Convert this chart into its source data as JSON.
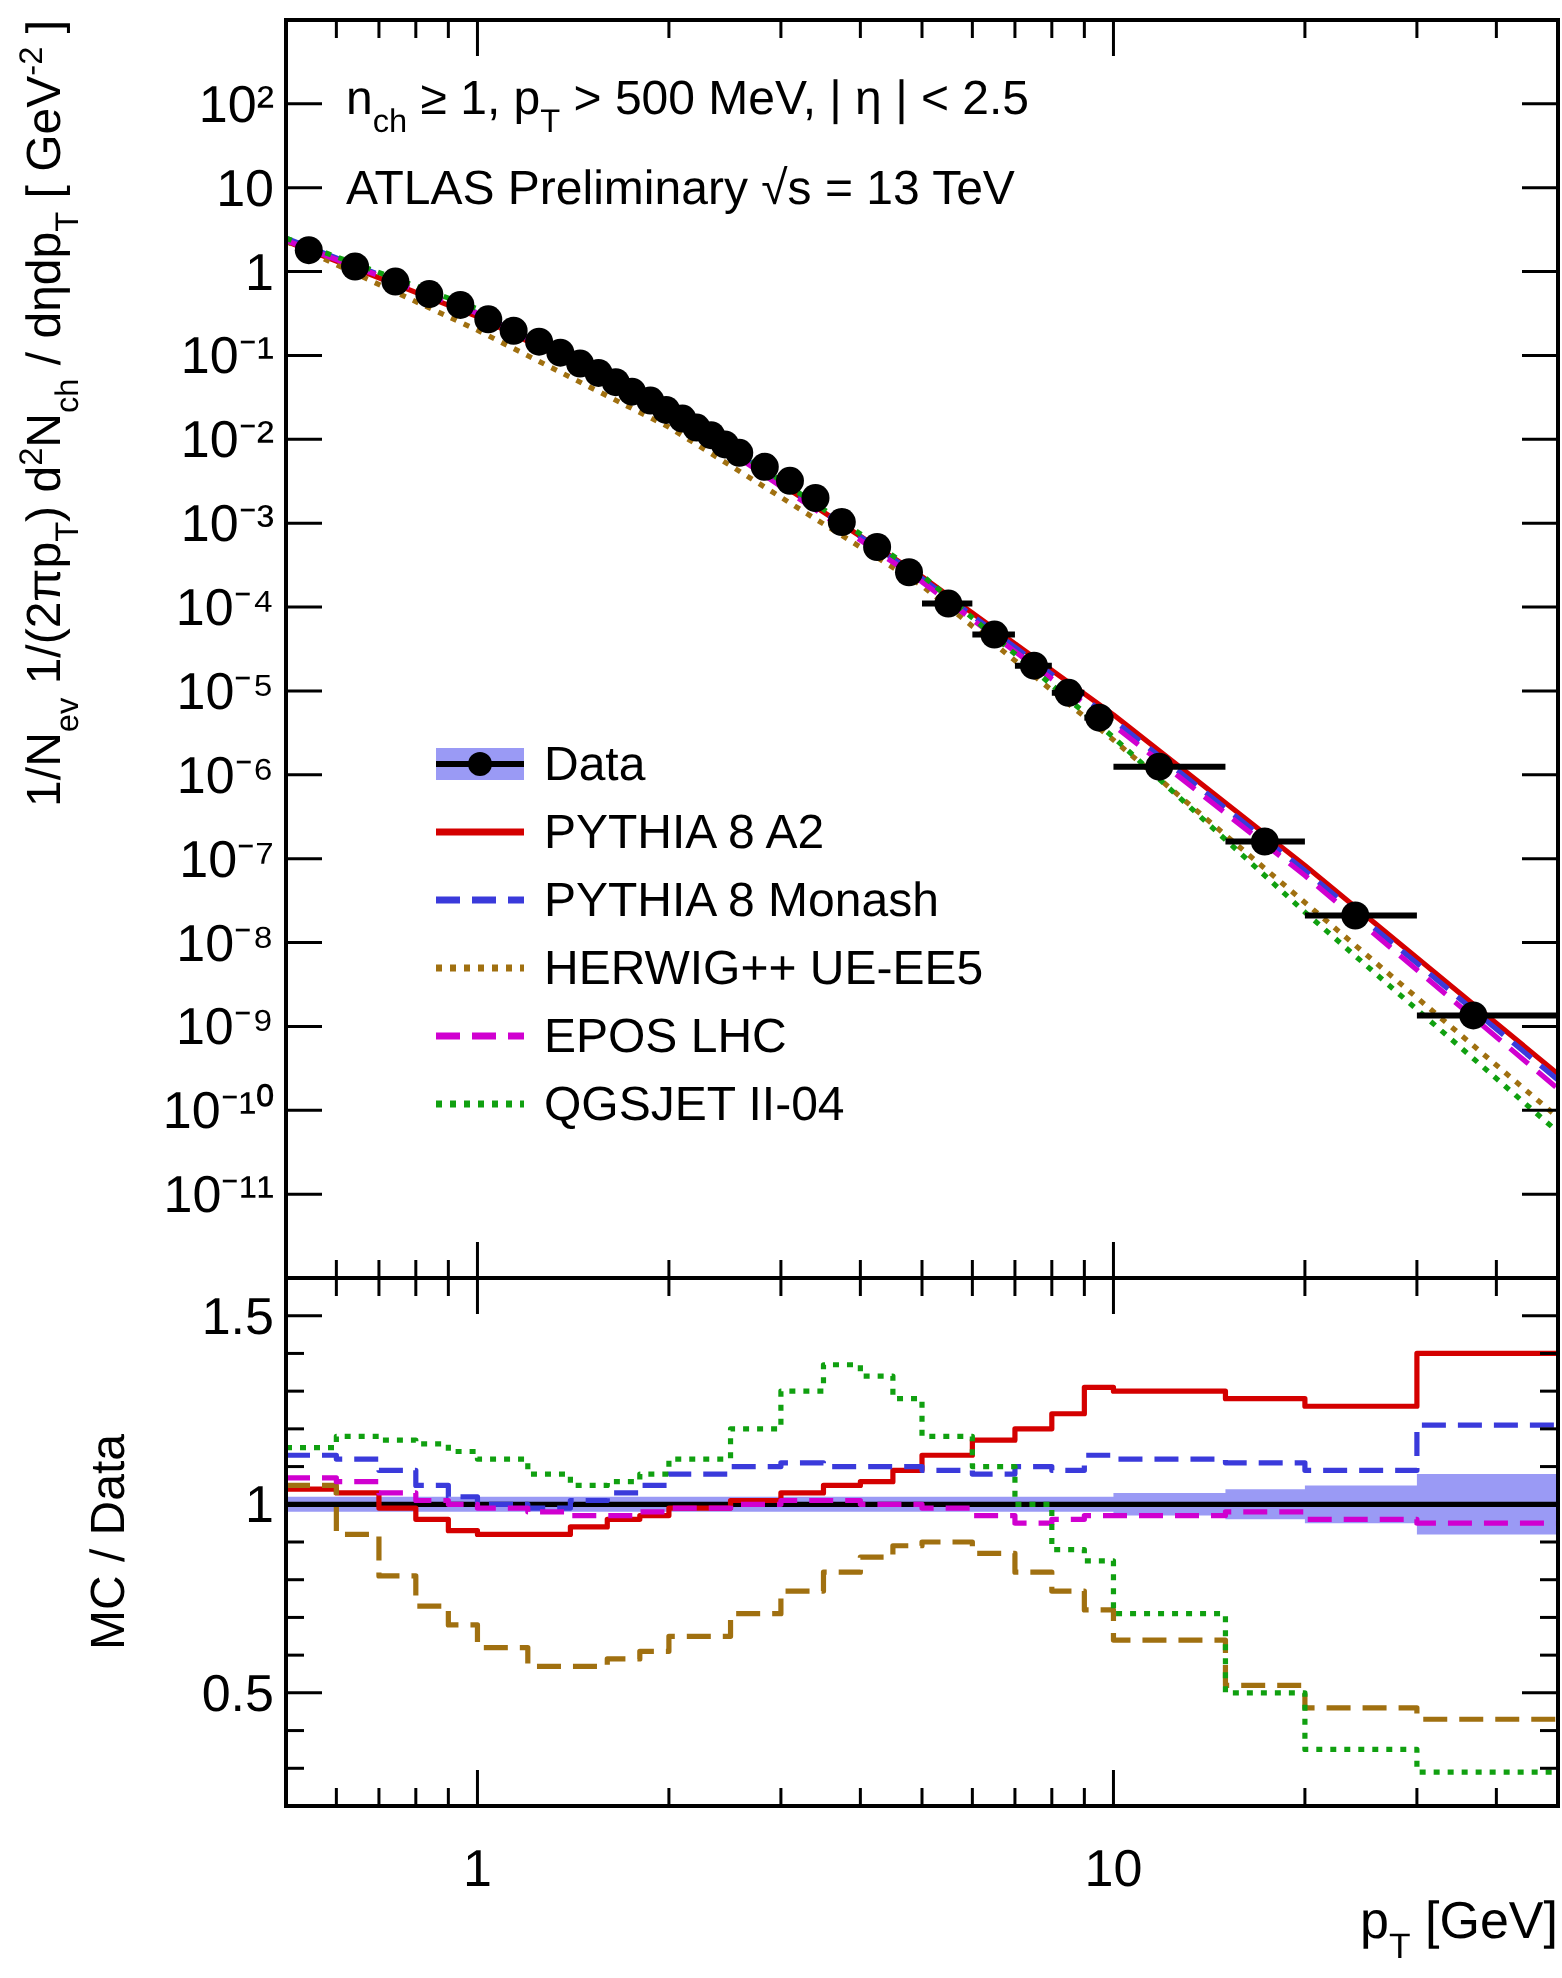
{
  "chart_data": [
    {
      "type": "line",
      "log": "xy",
      "xlim": [
        0.5,
        50
      ],
      "ylim": [
        1e-12,
        1000
      ],
      "tick_labels": "y",
      "legend": "bottom left",
      "grid": false,
      "xticks": [
        {
          "value": 0.6,
          "label": null
        },
        {
          "value": 0.7,
          "label": null
        },
        {
          "value": 0.8,
          "label": null
        },
        {
          "value": 0.9,
          "label": null
        },
        {
          "value": 1,
          "label": null
        },
        {
          "value": 2,
          "label": null
        },
        {
          "value": 3,
          "label": null
        },
        {
          "value": 4,
          "label": null
        },
        {
          "value": 5,
          "label": null
        },
        {
          "value": 6,
          "label": null
        },
        {
          "value": 7,
          "label": null
        },
        {
          "value": 8,
          "label": null
        },
        {
          "value": 9,
          "label": null
        },
        {
          "value": 10,
          "label": null
        },
        {
          "value": 20,
          "label": null
        },
        {
          "value": 30,
          "label": null
        },
        {
          "value": 40,
          "label": null
        }
      ],
      "yticks": [
        {
          "value": 100,
          "label": "10²"
        },
        10,
        1,
        {
          "value": 0.1,
          "label": "10⁻¹"
        },
        {
          "value": 0.01,
          "label": "10⁻²"
        },
        {
          "value": 0.001,
          "label": "10⁻³"
        },
        {
          "value": 0.0001,
          "label": "10⁻⁴"
        },
        {
          "value": 1e-05,
          "label": "10⁻⁵"
        },
        {
          "value": 1e-06,
          "label": "10⁻⁶"
        },
        {
          "value": 1e-07,
          "label": "10⁻⁷"
        },
        {
          "value": 1e-08,
          "label": "10⁻⁸"
        },
        {
          "value": 1e-09,
          "label": "10⁻⁹"
        },
        {
          "value": 1e-10,
          "label": "10⁻¹⁰"
        },
        {
          "value": 1e-11,
          "label": "10⁻¹¹"
        }
      ],
      "ylabel": "1/N$_{ev}$ 1/(2πp$_{T}$) d$^{2}$N$_{ch}$ / dηdp$_{T}$ [ GeV$^{-2}$ ]",
      "annotations": [
        "n$_{ch}$ ≥ 1, p$_{T}$ > 500 MeV, | η | < 2.5",
        "ATLAS Preliminary √s = 13 TeV"
      ],
      "series": [
        {
          "name": "PYTHIA 8 A2",
          "color": "#d40000",
          "line_style": "solid",
          "x": [
            0.5,
            1,
            2,
            5,
            10,
            20,
            50
          ],
          "values": [
            2.3,
            0.29,
            0.022,
            0.00023,
            5.2e-06,
            8.3e-08,
            2.7e-10
          ]
        },
        {
          "name": "PYTHIA 8 Monash",
          "color": "#3a3adb",
          "line_style": "dashed",
          "x": [
            0.5,
            1,
            2,
            5,
            10,
            20,
            50
          ],
          "values": [
            2.5,
            0.32,
            0.024,
            0.00022,
            4.5e-06,
            7.2e-08,
            2.3e-10
          ]
        },
        {
          "name": "HERWIG++ UE-EE5",
          "color": "#a07010",
          "line_style": "dotted",
          "x": [
            0.5,
            1,
            2,
            5,
            10,
            20,
            50
          ],
          "values": [
            2.3,
            0.2,
            0.014,
            0.00018,
            2.6e-06,
            3e-08,
            8.2e-11
          ]
        },
        {
          "name": "EPOS LHC",
          "color": "#d000d0",
          "line_style": "dashed",
          "x": [
            0.5,
            1,
            2,
            5,
            10,
            20,
            50
          ],
          "values": [
            2.35,
            0.32,
            0.022,
            0.0002,
            3.9e-06,
            6.3e-08,
            1.8e-10
          ]
        },
        {
          "name": "QGSJET II-04",
          "color": "#10a010",
          "line_style": "dotted",
          "x": [
            0.5,
            1,
            2,
            5,
            10,
            20,
            50
          ],
          "values": [
            2.5,
            0.36,
            0.025,
            0.00024,
            2.8e-06,
            2.3e-08,
            5.5e-11
          ]
        },
        {
          "name": "Data",
          "type": "scatter",
          "color": "#000000",
          "marker": "circle",
          "x": [
            0.543,
            0.642,
            0.743,
            0.84,
            0.94,
            1.04,
            1.14,
            1.25,
            1.35,
            1.45,
            1.55,
            1.65,
            1.75,
            1.87,
            1.98,
            2.1,
            2.21,
            2.33,
            2.45,
            2.58,
            2.83,
            3.1,
            3.4,
            3.74,
            4.25,
            4.77,
            5.5,
            6.5,
            7.5,
            8.5,
            9.5,
            11.8,
            17.3,
            24,
            36.8
          ],
          "values": [
            1.8,
            1.15,
            0.76,
            0.54,
            0.4,
            0.27,
            0.197,
            0.146,
            0.108,
            0.08,
            0.062,
            0.048,
            0.037,
            0.029,
            0.0224,
            0.0177,
            0.0138,
            0.0112,
            0.0087,
            0.0069,
            0.0047,
            0.0032,
            0.002,
            0.00103,
            0.00052,
            0.00026,
            0.00011,
            4.7e-05,
            2e-05,
            9.5e-06,
            4.8e-06,
            1.25e-06,
            1.6e-07,
            2.1e-08,
            1.35e-09
          ],
          "xerrors": [
            null,
            null,
            null,
            null,
            null,
            null,
            null,
            null,
            null,
            null,
            null,
            null,
            null,
            null,
            null,
            null,
            null,
            null,
            null,
            null,
            null,
            null,
            null,
            null,
            null,
            null,
            [
              5,
              6
            ],
            [
              6,
              7
            ],
            [
              7,
              8
            ],
            [
              8,
              9
            ],
            [
              9,
              10
            ],
            [
              10,
              15
            ],
            [
              15,
              20
            ],
            [
              20,
              30
            ],
            [
              30,
              50
            ]
          ]
        }
      ]
    },
    {
      "type": "step",
      "log": "x",
      "xlim": [
        0.5,
        50
      ],
      "ylim": [
        0.2,
        1.6
      ],
      "grid": false,
      "xlabel": "p$_{T}$ [GeV]",
      "ylabel": "MC / Data",
      "xticks": [
        {
          "value": 0.6,
          "label": null
        },
        {
          "value": 0.7,
          "label": null
        },
        {
          "value": 0.8,
          "label": null
        },
        {
          "value": 0.9,
          "label": null
        },
        1,
        {
          "value": 2,
          "label": null
        },
        {
          "value": 3,
          "label": null
        },
        {
          "value": 4,
          "label": null
        },
        {
          "value": 5,
          "label": null
        },
        {
          "value": 6,
          "label": null
        },
        {
          "value": 7,
          "label": null
        },
        {
          "value": 8,
          "label": null
        },
        {
          "value": 9,
          "label": null
        },
        10,
        {
          "value": 20,
          "label": null
        },
        {
          "value": 30,
          "label": null
        },
        {
          "value": 40,
          "label": null
        }
      ],
      "yticks": [
        {
          "value": 0.3,
          "label": null
        },
        {
          "value": 0.4,
          "label": null
        },
        0.5,
        {
          "value": 0.6,
          "label": null
        },
        {
          "value": 0.7,
          "label": null
        },
        {
          "value": 0.8,
          "label": null
        },
        {
          "value": 0.9,
          "label": null
        },
        1,
        {
          "value": 1.1,
          "label": null
        },
        {
          "value": 1.2,
          "label": null
        },
        {
          "value": 1.3,
          "label": null
        },
        {
          "value": 1.4,
          "label": null
        },
        1.5
      ],
      "series": [
        {
          "color": "#000000",
          "line_style": "solid",
          "x": [
            0.5,
            0.6,
            0.7,
            0.8,
            0.9,
            1,
            1.2,
            1.4,
            1.6,
            1.8,
            2,
            2.5,
            3,
            3.5,
            4,
            4.5,
            5,
            6,
            7,
            8,
            9,
            10,
            15,
            20,
            30,
            50
          ],
          "values": [
            1,
            1,
            1,
            1,
            1,
            1,
            1,
            1,
            1,
            1,
            1,
            1,
            1,
            1,
            1,
            1,
            1,
            1,
            1,
            1,
            1,
            1,
            1,
            1,
            1,
            1
          ],
          "lower": [
            0.98,
            0.98,
            0.98,
            0.98,
            0.98,
            0.98,
            0.98,
            0.98,
            0.98,
            0.98,
            0.98,
            0.98,
            0.98,
            0.98,
            0.98,
            0.98,
            0.98,
            0.98,
            0.98,
            0.98,
            0.98,
            0.97,
            0.96,
            0.95,
            0.92,
            0.92
          ],
          "upper": [
            1.02,
            1.02,
            1.02,
            1.02,
            1.02,
            1.02,
            1.02,
            1.02,
            1.02,
            1.02,
            1.02,
            1.02,
            1.02,
            1.02,
            1.02,
            1.02,
            1.02,
            1.02,
            1.02,
            1.02,
            1.02,
            1.03,
            1.04,
            1.05,
            1.08,
            1.08
          ]
        },
        {
          "color": "#d40000",
          "line_style": "solid",
          "x": [
            0.5,
            0.6,
            0.7,
            0.8,
            0.9,
            1,
            1.2,
            1.4,
            1.6,
            1.8,
            2,
            2.5,
            3,
            3.5,
            4,
            4.5,
            5,
            6,
            7,
            8,
            9,
            10,
            15,
            20,
            30,
            50
          ],
          "values": [
            1.04,
            1.03,
            0.99,
            0.96,
            0.93,
            0.92,
            0.92,
            0.94,
            0.96,
            0.97,
            0.99,
            1.01,
            1.03,
            1.05,
            1.06,
            1.09,
            1.13,
            1.17,
            1.2,
            1.24,
            1.31,
            1.3,
            1.28,
            1.26,
            1.4,
            1.4
          ]
        },
        {
          "color": "#3a3adb",
          "line_style": "dashed",
          "x": [
            0.5,
            0.6,
            0.7,
            0.8,
            0.9,
            1,
            1.2,
            1.4,
            1.6,
            1.8,
            2,
            2.5,
            3,
            3.5,
            4,
            4.5,
            5,
            6,
            7,
            8,
            9,
            10,
            15,
            20,
            30,
            50
          ],
          "values": [
            1.13,
            1.12,
            1.09,
            1.05,
            1.02,
            1,
            0.99,
            1.01,
            1.03,
            1.05,
            1.08,
            1.1,
            1.11,
            1.1,
            1.1,
            1.1,
            1.09,
            1.08,
            1.1,
            1.09,
            1.13,
            1.12,
            1.11,
            1.09,
            1.21,
            1.21
          ]
        },
        {
          "color": "#a07010",
          "line_style": "dashed",
          "x": [
            0.5,
            0.6,
            0.7,
            0.8,
            0.9,
            1,
            1.2,
            1.4,
            1.6,
            1.8,
            2,
            2.5,
            3,
            3.5,
            4,
            4.5,
            5,
            6,
            7,
            8,
            9,
            10,
            15,
            20,
            30,
            50
          ],
          "values": [
            1.05,
            0.92,
            0.81,
            0.73,
            0.68,
            0.62,
            0.57,
            0.57,
            0.59,
            0.61,
            0.65,
            0.71,
            0.77,
            0.82,
            0.86,
            0.89,
            0.9,
            0.87,
            0.82,
            0.77,
            0.72,
            0.64,
            0.52,
            0.46,
            0.43,
            0.43
          ]
        },
        {
          "color": "#d000d0",
          "line_style": "dashed",
          "x": [
            0.5,
            0.6,
            0.7,
            0.8,
            0.9,
            1,
            1.2,
            1.4,
            1.6,
            1.8,
            2,
            2.5,
            3,
            3.5,
            4,
            4.5,
            5,
            6,
            7,
            8,
            9,
            10,
            15,
            20,
            30,
            50
          ],
          "values": [
            1.07,
            1.06,
            1.03,
            1.01,
            1,
            0.99,
            0.98,
            0.97,
            0.97,
            0.98,
            0.99,
            1,
            1.01,
            1.01,
            1,
            1,
            0.99,
            0.97,
            0.95,
            0.96,
            0.97,
            0.97,
            0.98,
            0.96,
            0.95,
            0.95
          ]
        },
        {
          "color": "#10a010",
          "line_style": "dotted",
          "x": [
            0.5,
            0.6,
            0.7,
            0.8,
            0.9,
            1,
            1.2,
            1.4,
            1.6,
            1.8,
            2,
            2.5,
            3,
            3.5,
            4,
            4.5,
            5,
            6,
            7,
            8,
            9,
            10,
            15,
            20,
            30,
            50
          ],
          "values": [
            1.15,
            1.18,
            1.17,
            1.16,
            1.14,
            1.12,
            1.08,
            1.05,
            1.06,
            1.08,
            1.12,
            1.2,
            1.3,
            1.37,
            1.34,
            1.28,
            1.18,
            1.1,
            1,
            0.88,
            0.85,
            0.71,
            0.5,
            0.35,
            0.29,
            0.29
          ]
        }
      ]
    }
  ]
}
